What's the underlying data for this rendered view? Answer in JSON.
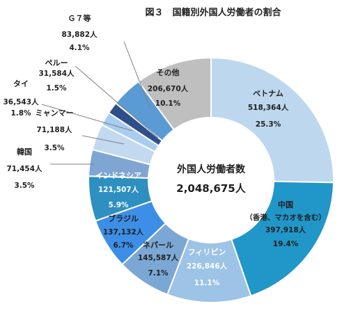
{
  "chart_data": {
    "type": "pie",
    "style": "donut",
    "title": "図３　国籍別外国人労働者の割合",
    "center": {
      "label": "外国人労働者数",
      "total": "2,048,675人"
    },
    "unit": "人",
    "slices": [
      {
        "name": "ベトナム",
        "count": "518,364人",
        "percent": "25.3%",
        "value": 518364,
        "color": "#bdd7ee",
        "text_color": "#1f1f1f"
      },
      {
        "name": "中国",
        "name2": "（香港、マカオを含む）",
        "count": "397,918人",
        "percent": "19.4%",
        "value": 397918,
        "color": "#2196c8",
        "text_color": "#1f1f1f"
      },
      {
        "name": "フィリピン",
        "count": "226,846人",
        "percent": "11.1%",
        "value": 226846,
        "color": "#9dc3e6",
        "text_color": "#ffffff"
      },
      {
        "name": "ネパール",
        "count": "145,587人",
        "percent": "7.1%",
        "value": 145587,
        "color": "#7ba7d4",
        "text_color": "#1f1f1f"
      },
      {
        "name": "ブラジル",
        "count": "137,132人",
        "percent": "6.7%",
        "value": 137132,
        "color": "#3d8ee6",
        "text_color": "#1f1f1f"
      },
      {
        "name": "インドネシア",
        "count": "121,507人",
        "percent": "5.9%",
        "value": 121507,
        "color": "#2e8fc1",
        "text_color": "#ffffff"
      },
      {
        "name": "韓国",
        "count": "71,454人",
        "percent": "3.5%",
        "value": 71454,
        "color": "#7fa6d2",
        "text_color": "#1f1f1f"
      },
      {
        "name": "ミャンマー",
        "count": "71,188人",
        "percent": "3.5%",
        "value": 71188,
        "color": "#c2d9ef",
        "text_color": "#1f1f1f"
      },
      {
        "name": "タイ",
        "count": "36,543人",
        "percent": "1.8%",
        "value": 36543,
        "color": "#a9cdf0",
        "text_color": "#1f1f1f"
      },
      {
        "name": "ペルー",
        "count": "31,584人",
        "percent": "1.5%",
        "value": 31584,
        "color": "#2f4f8a",
        "text_color": "#1f1f1f"
      },
      {
        "name": "Ｇ７等",
        "count": "83,882人",
        "percent": "4.1%",
        "value": 83882,
        "color": "#5b9bd5",
        "text_color": "#1f1f1f"
      },
      {
        "name": "その他",
        "count": "206,670人",
        "percent": "10.1%",
        "value": 206670,
        "color": "#bfbfbf",
        "text_color": "#1f1f1f"
      }
    ]
  }
}
